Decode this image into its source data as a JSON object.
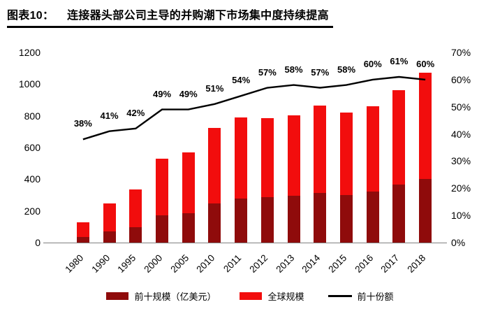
{
  "header": {
    "figure_no": "图表10：",
    "title": "连接器头部公司主导的并购潮下市场集中度持续提高"
  },
  "chart_data": {
    "type": "bar+line",
    "title": "连接器头部公司主导的并购潮下市场集中度持续提高",
    "stacked": true,
    "grid": false,
    "legend_position": "bottom",
    "categories": [
      "1980",
      "1990",
      "1995",
      "2000",
      "2005",
      "2010",
      "2011",
      "2012",
      "2013",
      "2014",
      "2015",
      "2016",
      "2017",
      "2018"
    ],
    "series": [
      {
        "name": "前十规模（亿美元）",
        "type": "bar",
        "color": "#8f0b0b",
        "values": [
          36,
          71,
          99,
          174,
          187,
          245,
          277,
          285,
          296,
          314,
          301,
          323,
          364,
          401
        ]
      },
      {
        "name": "全球规模",
        "type": "bar",
        "color": "#f20d0d",
        "values": [
          94,
          174,
          236,
          356,
          383,
          480,
          513,
          500,
          509,
          551,
          519,
          537,
          596,
          669
        ]
      },
      {
        "name": "前十份额",
        "type": "line",
        "axis": "right",
        "color": "#000000",
        "values": [
          38,
          41,
          42,
          49,
          49,
          51,
          54,
          57,
          58,
          57,
          58,
          60,
          61,
          60
        ],
        "labels": [
          "38%",
          "41%",
          "42%",
          "49%",
          "49%",
          "51%",
          "54%",
          "57%",
          "58%",
          "57%",
          "58%",
          "60%",
          "61%",
          "60%"
        ]
      }
    ],
    "bar_stack_totals": [
      130,
      245,
      335,
      530,
      570,
      725,
      790,
      785,
      805,
      865,
      820,
      860,
      960,
      1070
    ],
    "left_axis": {
      "min": 0,
      "max": 1200,
      "step": 200,
      "ticks": [
        "0",
        "200",
        "400",
        "600",
        "800",
        "1000",
        "1200"
      ]
    },
    "right_axis": {
      "min": 0,
      "max": 70,
      "step": 10,
      "ticks": [
        "0%",
        "10%",
        "20%",
        "30%",
        "40%",
        "50%",
        "60%",
        "70%"
      ]
    }
  }
}
